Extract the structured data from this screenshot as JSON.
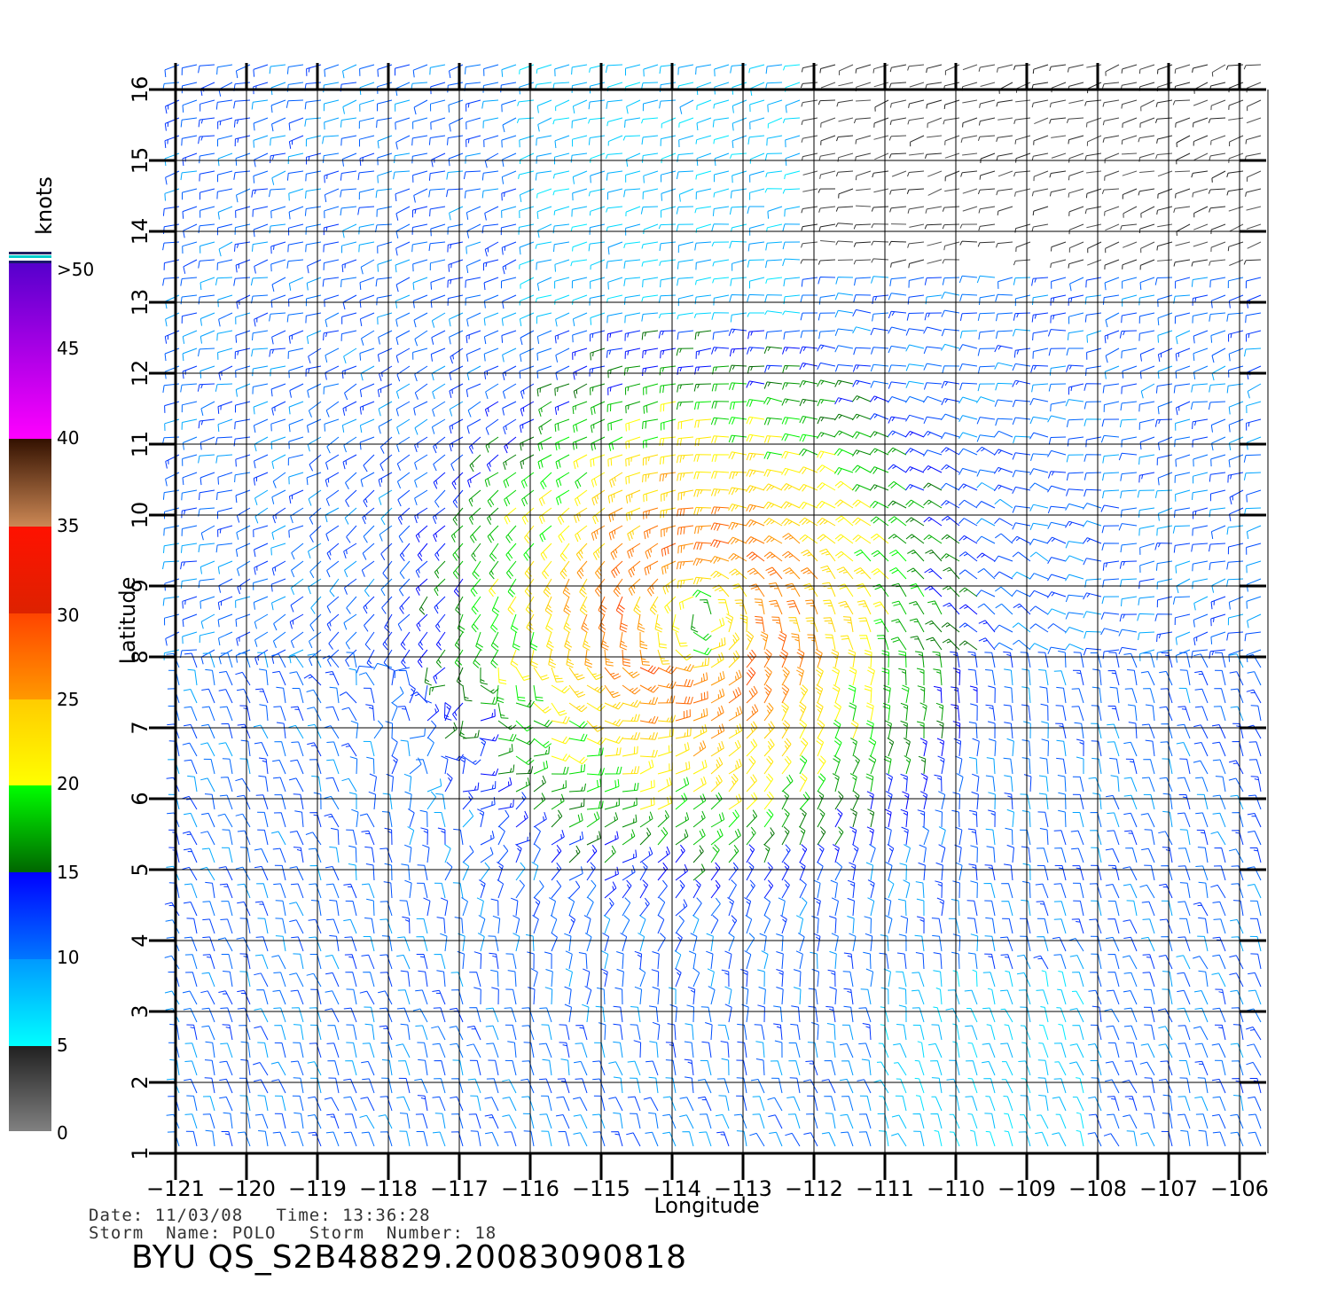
{
  "map": {
    "xlabel": "Longitude",
    "ylabel": "Latitude",
    "lon_range": [
      -121,
      -105.6
    ],
    "lat_range": [
      1,
      16.4
    ],
    "lon_ticks": [
      "-121",
      "-120",
      "-119",
      "-118",
      "-117",
      "-116",
      "-115",
      "-114",
      "-113",
      "-112",
      "-111",
      "-110",
      "-109",
      "-108",
      "-107",
      "-106"
    ],
    "lat_ticks": [
      "1",
      "2",
      "3",
      "4",
      "5",
      "6",
      "7",
      "8",
      "9",
      "10",
      "11",
      "12",
      "13",
      "14",
      "15",
      "16"
    ],
    "grid": true,
    "storm_center": {
      "lon": -113.6,
      "lat": 8.6
    },
    "units": "knots"
  },
  "colorbar": {
    "title": "knots",
    "tick_labels": [
      "0",
      "5",
      "10",
      "15",
      "20",
      "25",
      "30",
      "35",
      "40",
      "45",
      ">50"
    ],
    "bands": [
      {
        "from": 0,
        "to": 5,
        "colors": [
          "#808080",
          "#202020"
        ]
      },
      {
        "from": 5,
        "to": 10,
        "colors": [
          "#00ffff",
          "#0099ff"
        ]
      },
      {
        "from": 10,
        "to": 15,
        "colors": [
          "#0077ff",
          "#0000ff"
        ]
      },
      {
        "from": 15,
        "to": 20,
        "colors": [
          "#006600",
          "#00ff00"
        ]
      },
      {
        "from": 20,
        "to": 25,
        "colors": [
          "#ffff00",
          "#ffcc00"
        ]
      },
      {
        "from": 25,
        "to": 30,
        "colors": [
          "#ff9900",
          "#ff4400"
        ]
      },
      {
        "from": 30,
        "to": 35,
        "colors": [
          "#dd2200",
          "#ff1100"
        ]
      },
      {
        "from": 35,
        "to": 40,
        "colors": [
          "#cc8855",
          "#331100"
        ]
      },
      {
        "from": 40,
        "to": 50,
        "colors": [
          "#ff00ff",
          "#5500cc"
        ]
      }
    ]
  },
  "footer": {
    "line1": "Date: 11/03/08   Time: 13:36:28",
    "line2": "Storm  Name: POLO   Storm  Number: 18",
    "title": "BYU  QS_S2B48829.20083090818"
  }
}
